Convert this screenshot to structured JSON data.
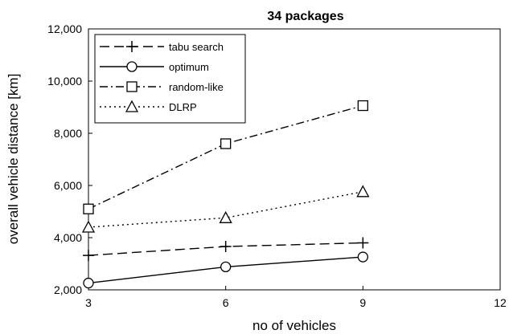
{
  "chart_data": {
    "type": "line",
    "title": "34 packages",
    "xlabel": "no of vehicles",
    "ylabel": "overall vehicle distance [km]",
    "xlim": [
      3,
      12
    ],
    "ylim": [
      2000,
      12000
    ],
    "x_ticks": [
      "3",
      "6",
      "9",
      "12"
    ],
    "y_ticks": [
      "2,000",
      "4,000",
      "6,000",
      "8,000",
      "10,000",
      "12,000"
    ],
    "grid": false,
    "legend_position": "top-left",
    "series": [
      {
        "name": "tabu search",
        "marker": "plus",
        "dash": "dashed",
        "x": [
          3,
          6,
          9
        ],
        "y": [
          3320,
          3660,
          3800
        ]
      },
      {
        "name": "optimum",
        "marker": "circle",
        "dash": "solid",
        "x": [
          3,
          6,
          9
        ],
        "y": [
          2260,
          2880,
          3260
        ]
      },
      {
        "name": "random-like",
        "marker": "square",
        "dash": "dashdot",
        "x": [
          3,
          6,
          9
        ],
        "y": [
          5100,
          7600,
          9060
        ]
      },
      {
        "name": "DLRP",
        "marker": "triangle",
        "dash": "dotted",
        "x": [
          3,
          6,
          9
        ],
        "y": [
          4400,
          4760,
          5760
        ]
      }
    ]
  }
}
